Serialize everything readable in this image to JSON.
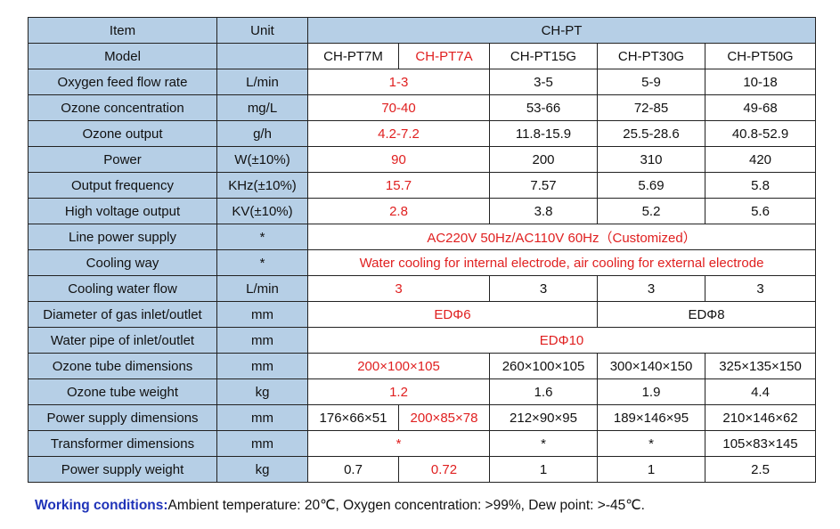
{
  "header": {
    "item": "Item",
    "unit": "Unit",
    "series": "CH-PT"
  },
  "models": {
    "label": "Model",
    "unit": "",
    "names": [
      "CH-PT7M",
      "CH-PT7A",
      "CH-PT15G",
      "CH-PT30G",
      "CH-PT50G"
    ]
  },
  "rows": [
    {
      "label": "Oxygen feed flow rate",
      "unit": "L/min",
      "values": [
        "1-3",
        "3-5",
        "5-9",
        "10-18"
      ]
    },
    {
      "label": "Ozone concentration",
      "unit": "mg/L",
      "values": [
        "70-40",
        "53-66",
        "72-85",
        "49-68"
      ]
    },
    {
      "label": "Ozone output",
      "unit": "g/h",
      "values": [
        "4.2-7.2",
        "11.8-15.9",
        "25.5-28.6",
        "40.8-52.9"
      ]
    },
    {
      "label": "Power",
      "unit": "W(±10%)",
      "values": [
        "90",
        "200",
        "310",
        "420"
      ]
    },
    {
      "label": "Output frequency",
      "unit": "KHz(±10%)",
      "values": [
        "15.7",
        "7.57",
        "5.69",
        "5.8"
      ]
    },
    {
      "label": "High voltage output",
      "unit": "KV(±10%)",
      "values": [
        "2.8",
        "3.8",
        "5.2",
        "5.6"
      ]
    },
    {
      "label": "Line power supply",
      "unit": "*",
      "values": [
        "AC220V 50Hz/AC110V 60Hz（Customized）"
      ]
    },
    {
      "label": "Cooling way",
      "unit": "*",
      "values": [
        "Water cooling for internal electrode, air cooling for external electrode"
      ]
    },
    {
      "label": "Cooling water flow",
      "unit": "L/min",
      "values": [
        "3",
        "3",
        "3",
        "3"
      ]
    },
    {
      "label": "Diameter of gas inlet/outlet",
      "unit": "mm",
      "values": [
        "EDΦ6",
        "EDΦ8"
      ]
    },
    {
      "label": "Water pipe of inlet/outlet",
      "unit": "mm",
      "values": [
        "EDΦ10"
      ]
    },
    {
      "label": "Ozone tube dimensions",
      "unit": "mm",
      "values": [
        "200×100×105",
        "260×100×105",
        "300×140×150",
        "325×135×150"
      ]
    },
    {
      "label": "Ozone tube weight",
      "unit": "kg",
      "values": [
        "1.2",
        "1.6",
        "1.9",
        "4.4"
      ]
    },
    {
      "label": "Power supply dimensions",
      "unit": "mm",
      "values": [
        "176×66×51",
        "200×85×78",
        "212×90×95",
        "189×146×95",
        "210×146×62"
      ]
    },
    {
      "label": "Transformer dimensions",
      "unit": "mm",
      "values": [
        "*",
        "*",
        "*",
        "105×83×145"
      ]
    },
    {
      "label": "Power supply weight",
      "unit": "kg",
      "values": [
        "0.7",
        "0.72",
        "1",
        "1",
        "2.5"
      ]
    }
  ],
  "notes": {
    "label": "Working conditions:",
    "text": "Ambient temperature: 20℃, Oxygen concentration: >99%, Dew point: >-45℃."
  },
  "colors": {
    "header_bg": "#b6cfe6",
    "highlight_text": "#e02020",
    "notes_label": "#1f33b8"
  }
}
